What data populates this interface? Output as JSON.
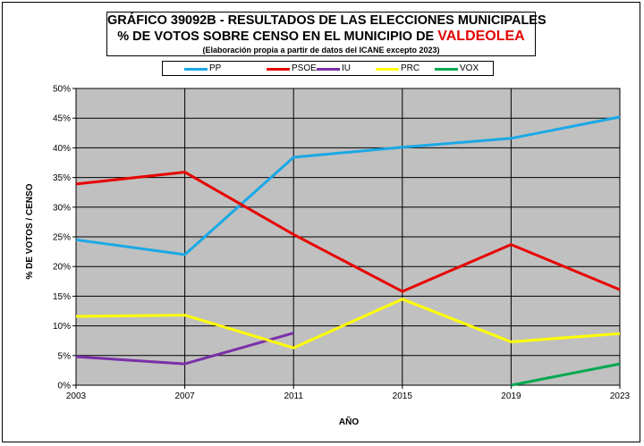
{
  "title": {
    "line1": "GRÁFICO 39092B - RESULTADOS DE LAS ELECCIONES MUNICIPALES",
    "line2_prefix": "% DE VOTOS SOBRE CENSO EN EL MUNICIPIO DE ",
    "line2_highlight": "VALDEOLEA",
    "line3": "(Elaboración propia a partir de datos del ICANE excepto 2023)",
    "highlight_color": "#e00000"
  },
  "chart_data": {
    "type": "line",
    "x": [
      "2003",
      "2007",
      "2011",
      "2015",
      "2019",
      "2023"
    ],
    "xlabel": "AÑO",
    "ylabel": "% DE VOTOS / CENSO",
    "ylim": [
      0,
      50
    ],
    "yticks": [
      "0%",
      "5%",
      "10%",
      "15%",
      "20%",
      "25%",
      "30%",
      "35%",
      "40%",
      "45%",
      "50%"
    ],
    "grid": true,
    "plot_background": "#c0c0c0",
    "legend_position": "top",
    "series": [
      {
        "name": "PP",
        "color": "#1aa8e6",
        "values": [
          24.5,
          22.0,
          38.4,
          40.1,
          41.6,
          45.2
        ]
      },
      {
        "name": "PSOE",
        "color": "#e80000",
        "values": [
          33.9,
          35.9,
          25.4,
          15.8,
          23.7,
          16.1
        ]
      },
      {
        "name": "IU",
        "color": "#7a2fa8",
        "values": [
          4.8,
          3.6,
          8.8,
          null,
          null,
          null
        ]
      },
      {
        "name": "PRC",
        "color": "#ffff00",
        "values": [
          11.6,
          11.8,
          6.3,
          14.5,
          7.3,
          8.7
        ]
      },
      {
        "name": "VOX",
        "color": "#00a850",
        "values": [
          null,
          null,
          null,
          null,
          0.0,
          3.6
        ]
      }
    ]
  }
}
